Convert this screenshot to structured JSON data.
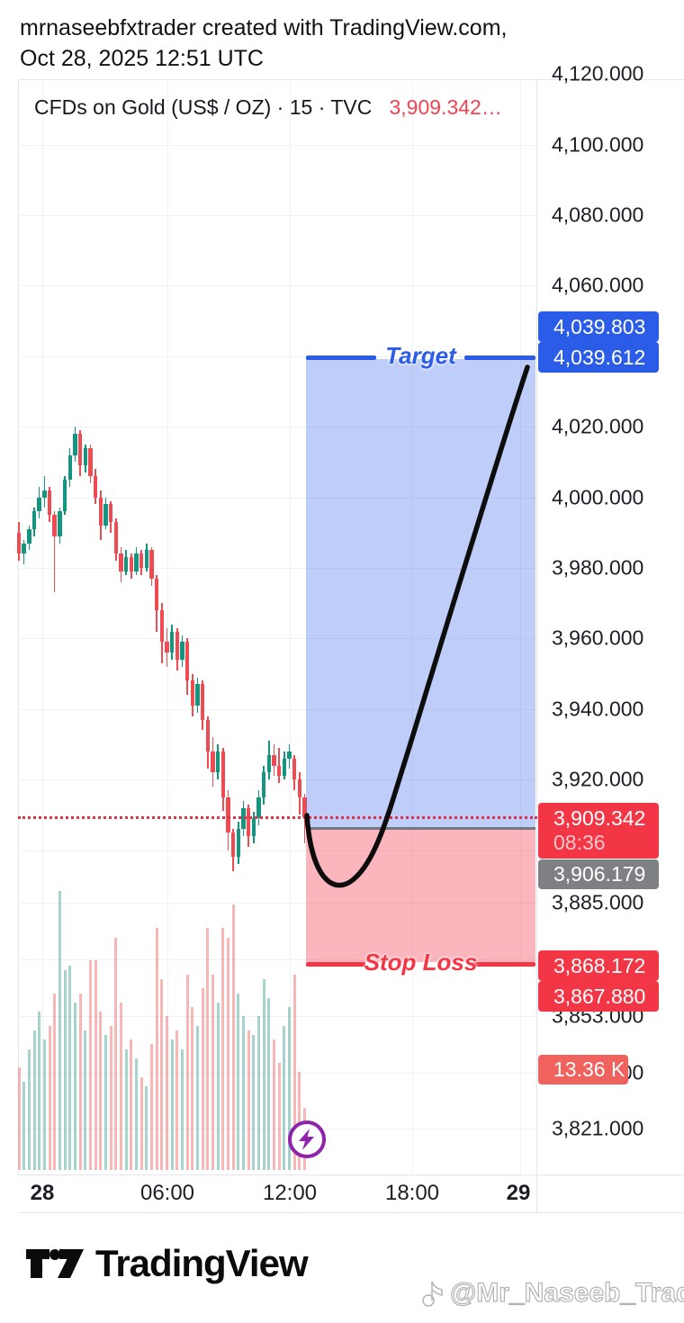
{
  "header": {
    "line1": "mrnaseebfxtrader created with TradingView.com,",
    "line2": "Oct 28, 2025 12:51 UTC"
  },
  "legend": {
    "symbol": "CFDs on Gold (US$ / OZ) · 15 · TVC",
    "price": "3,909.342…"
  },
  "chart_data": {
    "type": "candlestick",
    "symbol": "CFDs on Gold (US$ / OZ)",
    "interval": "15",
    "exchange": "TVC",
    "last_price": 3909.342,
    "bar_countdown": "08:36",
    "grid_prices": [
      4120,
      4100,
      4080,
      4060,
      4040,
      4020,
      4000,
      3980,
      3960,
      3940,
      3920,
      3900,
      3885,
      3869,
      3853,
      3837,
      3821
    ],
    "candles": [
      [
        3990,
        3993,
        3982,
        3984
      ],
      [
        3984,
        3988,
        3981,
        3987
      ],
      [
        3987,
        3992,
        3985,
        3991
      ],
      [
        3991,
        3997,
        3989,
        3996
      ],
      [
        3996,
        4003,
        3994,
        4000
      ],
      [
        4000,
        4006,
        3997,
        4002
      ],
      [
        4002,
        4003,
        3993,
        3995
      ],
      [
        3995,
        3996,
        3973,
        3989
      ],
      [
        3989,
        3997,
        3987,
        3996
      ],
      [
        3996,
        4006,
        3995,
        4005
      ],
      [
        4005,
        4014,
        4003,
        4012
      ],
      [
        4012,
        4020,
        4010,
        4018
      ],
      [
        4018,
        4019,
        4006,
        4009
      ],
      [
        4009,
        4015,
        4007,
        4014
      ],
      [
        4014,
        4015,
        4004,
        4006
      ],
      [
        4006,
        4008,
        3998,
        4000
      ],
      [
        4000,
        4002,
        3988,
        3992
      ],
      [
        3992,
        4000,
        3991,
        3998
      ],
      [
        3998,
        3999,
        3990,
        3993
      ],
      [
        3993,
        3994,
        3982,
        3984
      ],
      [
        3984,
        3986,
        3976,
        3979
      ],
      [
        3979,
        3985,
        3978,
        3983
      ],
      [
        3983,
        3984,
        3977,
        3979
      ],
      [
        3979,
        3986,
        3978,
        3984
      ],
      [
        3984,
        3985,
        3978,
        3980
      ],
      [
        3980,
        3987,
        3979,
        3985
      ],
      [
        3985,
        3986,
        3975,
        3977
      ],
      [
        3977,
        3978,
        3962,
        3968
      ],
      [
        3968,
        3970,
        3953,
        3959
      ],
      [
        3959,
        3963,
        3952,
        3956
      ],
      [
        3956,
        3964,
        3954,
        3962
      ],
      [
        3962,
        3963,
        3951,
        3954
      ],
      [
        3954,
        3961,
        3952,
        3959
      ],
      [
        3959,
        3960,
        3944,
        3948
      ],
      [
        3948,
        3950,
        3938,
        3941
      ],
      [
        3941,
        3949,
        3939,
        3947
      ],
      [
        3947,
        3948,
        3934,
        3937
      ],
      [
        3937,
        3938,
        3923,
        3928
      ],
      [
        3928,
        3932,
        3918,
        3922
      ],
      [
        3922,
        3930,
        3920,
        3928
      ],
      [
        3928,
        3929,
        3911,
        3915
      ],
      [
        3915,
        3917,
        3900,
        3905
      ],
      [
        3905,
        3906,
        3894,
        3898
      ],
      [
        3898,
        3908,
        3896,
        3906
      ],
      [
        3906,
        3914,
        3904,
        3912
      ],
      [
        3912,
        3913,
        3901,
        3904
      ],
      [
        3904,
        3911,
        3902,
        3909
      ],
      [
        3909,
        3917,
        3907,
        3915
      ],
      [
        3915,
        3924,
        3913,
        3922
      ],
      [
        3922,
        3931,
        3920,
        3927
      ],
      [
        3927,
        3930,
        3921,
        3924
      ],
      [
        3924,
        3929,
        3919,
        3921
      ],
      [
        3921,
        3928,
        3920,
        3926
      ],
      [
        3926,
        3930,
        3923,
        3928
      ],
      [
        3926,
        3927,
        3917,
        3920
      ],
      [
        3920,
        3922,
        3910,
        3915
      ],
      [
        3915,
        3916,
        3902,
        3909.34
      ]
    ],
    "volumes_k": [
      22,
      19,
      26,
      30,
      34,
      28,
      31,
      38,
      60,
      43,
      44,
      36,
      38,
      30,
      45,
      45,
      34,
      29,
      31,
      50,
      36,
      26,
      28,
      24,
      20,
      18,
      27,
      52,
      41,
      33,
      28,
      30,
      26,
      42,
      35,
      31,
      39,
      52,
      42,
      36,
      52,
      50,
      57,
      38,
      33,
      30,
      29,
      33,
      41,
      37,
      28,
      23,
      31,
      35,
      42,
      21,
      13.36
    ],
    "long_position_tool": {
      "entry_price": 3906.179,
      "target_prices": [
        4039.803,
        4039.612
      ],
      "stop_prices": [
        3868.172,
        3867.88
      ],
      "target_label": "Target",
      "stop_label": "Stop Loss",
      "current_volume": "13.36 K"
    },
    "x_axis": {
      "labels": [
        "28",
        "06:00",
        "12:00",
        "18:00",
        "29"
      ]
    },
    "y_axis": {
      "range_visible": [
        3808,
        4122
      ],
      "grid": true
    }
  },
  "price_axis": {
    "ticks": [
      {
        "label": "4,120.000",
        "price": 4120
      },
      {
        "label": "4,100.000",
        "price": 4100
      },
      {
        "label": "4,080.000",
        "price": 4080
      },
      {
        "label": "4,060.000",
        "price": 4060
      },
      {
        "label": "4,020.000",
        "price": 4020
      },
      {
        "label": "4,000.000",
        "price": 4000
      },
      {
        "label": "3,980.000",
        "price": 3980
      },
      {
        "label": "3,960.000",
        "price": 3960
      },
      {
        "label": "3,940.000",
        "price": 3940
      },
      {
        "label": "3,920.000",
        "price": 3920
      },
      {
        "label": "3,885.000",
        "price": 3885
      },
      {
        "label": "3,853.000",
        "price": 3853
      },
      {
        "label": "3,837.000",
        "price": 3837
      },
      {
        "label": "3,821.000",
        "price": 3821
      }
    ],
    "badges": {
      "target_upper": "4,039.803",
      "target": "4,039.612",
      "current": "3,909.342",
      "countdown": "08:36",
      "entry": "3,906.179",
      "stop_upper": "3,868.172",
      "stop": "3,867.880",
      "volume": "13.36 K"
    }
  },
  "time_axis": {
    "labels": [
      {
        "text": "28",
        "bold": true
      },
      {
        "text": "06:00",
        "bold": false
      },
      {
        "text": "12:00",
        "bold": false
      },
      {
        "text": "18:00",
        "bold": false
      },
      {
        "text": "29",
        "bold": true
      }
    ]
  },
  "overlay": {
    "target_label": "Target",
    "stop_label": "Stop Loss"
  },
  "footer": {
    "brand": "TradingView",
    "watermark": "@Mr_Naseeb_Trader"
  },
  "colors": {
    "up": "#149580",
    "down": "#ee4b52",
    "vol_up": "rgba(42,150,133,0.42)",
    "vol_down": "rgba(239,83,80,0.42)",
    "blue": "#2b5ce8",
    "red": "#f23645",
    "gray": "#7e8083",
    "salmon": "#f0625d",
    "zone_profit": "rgba(43,92,232,0.30)",
    "zone_loss": "rgba(242,54,69,0.36)",
    "dotted_price_line": "#e0314b",
    "purple": "#8e24aa"
  }
}
